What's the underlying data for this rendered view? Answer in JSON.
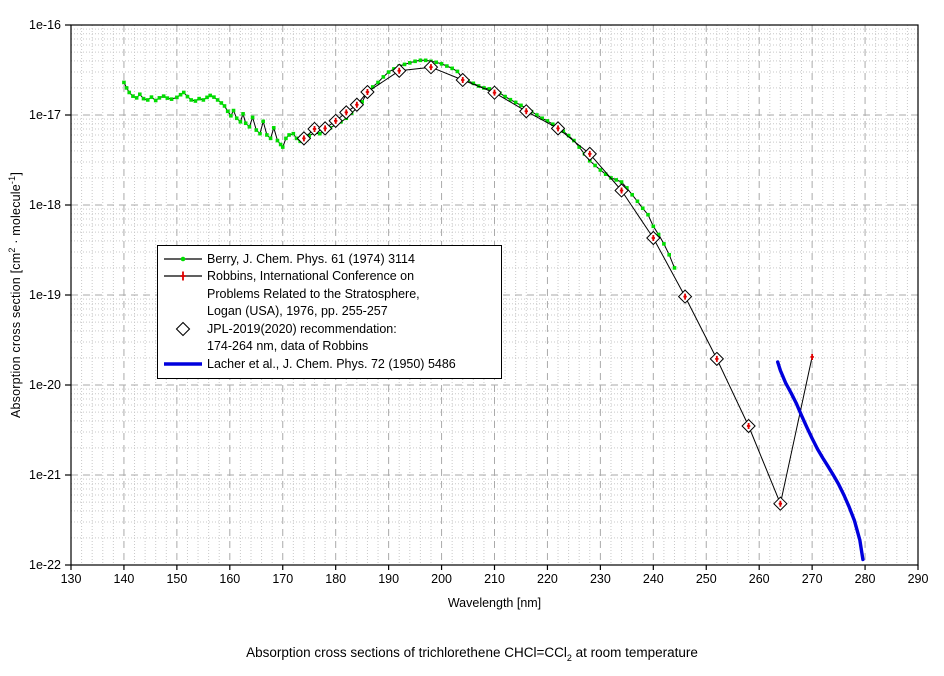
{
  "page": {
    "caption": {
      "pre": "Absorption cross sections of trichlorethene CHCl=CCl",
      "sub": "2",
      "post": " at room temperature"
    }
  },
  "chart_data": {
    "type": "line",
    "title": "Absorption cross sections of trichlorethene CHCl=CCl2 at room temperature",
    "xlabel": "Wavelength [nm]",
    "ylabel_parts": {
      "pre": "Absorption cross section [cm",
      "sup1": "2",
      "mid": " · molecule",
      "sup2": "-1",
      "post": "]"
    },
    "x_axis": {
      "min": 130,
      "max": 290,
      "major_tick_step": 10,
      "minor_grid_step": 2,
      "tick_labels": [
        "130",
        "140",
        "150",
        "160",
        "170",
        "180",
        "190",
        "200",
        "210",
        "220",
        "230",
        "240",
        "250",
        "260",
        "270",
        "280",
        "290"
      ]
    },
    "y_axis": {
      "scale": "log",
      "min": 1e-22,
      "max": 1e-16,
      "tick_labels": [
        "1e-16",
        "1e-17",
        "1e-18",
        "1e-19",
        "1e-20",
        "1e-21",
        "1e-22"
      ]
    },
    "grid": {
      "shown": true,
      "minor_color": "#c9c9c9",
      "major_color": "#aaaaaa"
    },
    "legend_position": "inside upper-left",
    "legend": {
      "entries": [
        {
          "series": "berry",
          "lines": [
            "Berry, J. Chem. Phys. 61 (1974) 3114"
          ]
        },
        {
          "series": "robbins",
          "lines": [
            "Robbins,  International Conference on",
            "Problems Related to the Stratosphere,",
            "Logan (USA), 1976, pp. 255-257"
          ]
        },
        {
          "series": "jpl",
          "lines": [
            "JPL-2019(2020) recommendation:",
            "174-264 nm, data of Robbins"
          ]
        },
        {
          "series": "lacher",
          "lines": [
            "Lacher et al., J. Chem. Phys. 72 (1950) 5486"
          ]
        }
      ]
    },
    "series": [
      {
        "name": "berry",
        "label": "Berry, J. Chem. Phys. 61 (1974) 3114",
        "line_color": "#000000",
        "line_width": 1,
        "marker": "square",
        "marker_color": "#00dd00",
        "marker_size": 3.6,
        "points": [
          [
            140,
            2.3e-17
          ],
          [
            140.5,
            2e-17
          ],
          [
            141,
            1.78e-17
          ],
          [
            141.7,
            1.62e-17
          ],
          [
            142.4,
            1.55e-17
          ],
          [
            143,
            1.7e-17
          ],
          [
            143.7,
            1.52e-17
          ],
          [
            144.5,
            1.47e-17
          ],
          [
            145.2,
            1.58e-17
          ],
          [
            146,
            1.45e-17
          ],
          [
            146.7,
            1.55e-17
          ],
          [
            147.5,
            1.62e-17
          ],
          [
            148.2,
            1.54e-17
          ],
          [
            149,
            1.5e-17
          ],
          [
            150,
            1.57e-17
          ],
          [
            150.7,
            1.68e-17
          ],
          [
            151.3,
            1.78e-17
          ],
          [
            152,
            1.6e-17
          ],
          [
            152.7,
            1.47e-17
          ],
          [
            153.5,
            1.43e-17
          ],
          [
            154.2,
            1.52e-17
          ],
          [
            155,
            1.47e-17
          ],
          [
            155.7,
            1.57e-17
          ],
          [
            156.3,
            1.65e-17
          ],
          [
            157,
            1.58e-17
          ],
          [
            157.7,
            1.47e-17
          ],
          [
            158.4,
            1.36e-17
          ],
          [
            159,
            1.26e-17
          ],
          [
            159.6,
            1.1e-17
          ],
          [
            160.2,
            9.8e-18
          ],
          [
            160.7,
            1.12e-17
          ],
          [
            161.3,
            9.2e-18
          ],
          [
            162,
            8.4e-18
          ],
          [
            162.5,
            1.03e-17
          ],
          [
            163,
            8.1e-18
          ],
          [
            163.7,
            7.4e-18
          ],
          [
            164.3,
            9.4e-18
          ],
          [
            165,
            6.8e-18
          ],
          [
            165.7,
            6.2e-18
          ],
          [
            166.3,
            8.5e-18
          ],
          [
            167,
            6e-18
          ],
          [
            167.7,
            5.5e-18
          ],
          [
            168.3,
            7.2e-18
          ],
          [
            169,
            5.2e-18
          ],
          [
            169.6,
            4.7e-18
          ],
          [
            170,
            4.4e-18
          ],
          [
            170.6,
            5.5e-18
          ],
          [
            171.2,
            6e-18
          ],
          [
            172,
            6.2e-18
          ],
          [
            172.6,
            5.5e-18
          ],
          [
            173.3,
            5.1e-18
          ],
          [
            174,
            5.4e-18
          ],
          [
            175,
            5.9e-18
          ],
          [
            176,
            6.3e-18
          ],
          [
            177,
            6.2e-18
          ],
          [
            178,
            6.6e-18
          ],
          [
            179,
            7.2e-18
          ],
          [
            180,
            7.8e-18
          ],
          [
            181,
            8.4e-18
          ],
          [
            182,
            9.2e-18
          ],
          [
            183,
            1.05e-17
          ],
          [
            184,
            1.2e-17
          ],
          [
            185,
            1.4e-17
          ],
          [
            186,
            1.8e-17
          ],
          [
            187,
            2.05e-17
          ],
          [
            188,
            2.3e-17
          ],
          [
            189,
            2.65e-17
          ],
          [
            190,
            3e-17
          ],
          [
            191,
            3.25e-17
          ],
          [
            192,
            3.5e-17
          ],
          [
            193,
            3.65e-17
          ],
          [
            194,
            3.8e-17
          ],
          [
            195,
            3.95e-17
          ],
          [
            196,
            4.05e-17
          ],
          [
            197,
            4.05e-17
          ],
          [
            198,
            3.95e-17
          ],
          [
            199,
            3.85e-17
          ],
          [
            200,
            3.7e-17
          ],
          [
            201,
            3.5e-17
          ],
          [
            202,
            3.3e-17
          ],
          [
            203,
            3.05e-17
          ],
          [
            204,
            2.55e-17
          ],
          [
            205,
            2.4e-17
          ],
          [
            206,
            2.25e-17
          ],
          [
            207,
            2.1e-17
          ],
          [
            208,
            2e-17
          ],
          [
            209,
            1.95e-17
          ],
          [
            210,
            1.9e-17
          ],
          [
            211,
            1.75e-17
          ],
          [
            212,
            1.6e-17
          ],
          [
            213,
            1.48e-17
          ],
          [
            214,
            1.38e-17
          ],
          [
            215,
            1.28e-17
          ],
          [
            216,
            1.19e-17
          ],
          [
            217,
            1.09e-17
          ],
          [
            218,
            1e-17
          ],
          [
            219,
            9.2e-18
          ],
          [
            220,
            8.6e-18
          ],
          [
            221,
            7.9e-18
          ],
          [
            222,
            7.3e-18
          ],
          [
            223,
            6.6e-18
          ],
          [
            224,
            5.9e-18
          ],
          [
            225,
            5.2e-18
          ],
          [
            226,
            4.4e-18
          ],
          [
            227,
            3.7e-18
          ],
          [
            228,
            3.1e-18
          ],
          [
            229,
            2.75e-18
          ],
          [
            230,
            2.45e-18
          ],
          [
            231,
            2.2e-18
          ],
          [
            232,
            2e-18
          ],
          [
            233,
            1.9e-18
          ],
          [
            234,
            1.8e-18
          ],
          [
            235,
            1.55e-18
          ],
          [
            236,
            1.3e-18
          ],
          [
            237,
            1.1e-18
          ],
          [
            238,
            9.2e-19
          ],
          [
            239,
            7.8e-19
          ],
          [
            240,
            5.8e-19
          ],
          [
            241,
            4.7e-19
          ],
          [
            242,
            3.7e-19
          ],
          [
            243,
            2.8e-19
          ],
          [
            244,
            2e-19
          ]
        ]
      },
      {
        "name": "robbins",
        "label": "Robbins, International Conference on Problems Related to the Stratosphere, Logan (USA), 1976, pp. 255-257",
        "line_color": "#000000",
        "line_width": 1,
        "marker": "plus",
        "marker_color": "#e00000",
        "marker_size": 5,
        "points": [
          [
            174,
            5.5e-18
          ],
          [
            176,
            7e-18
          ],
          [
            178,
            7.1e-18
          ],
          [
            180,
            8.6e-18
          ],
          [
            182,
            1.07e-17
          ],
          [
            184,
            1.3e-17
          ],
          [
            186,
            1.8e-17
          ],
          [
            192,
            3.1e-17
          ],
          [
            198,
            3.4e-17
          ],
          [
            204,
            2.45e-17
          ],
          [
            210,
            1.77e-17
          ],
          [
            216,
            1.1e-17
          ],
          [
            222,
            7.1e-18
          ],
          [
            228,
            3.7e-18
          ],
          [
            234,
            1.45e-18
          ],
          [
            240,
            4.3e-19
          ],
          [
            246,
            9.6e-20
          ],
          [
            252,
            1.95e-20
          ],
          [
            258,
            3.5e-21
          ],
          [
            264,
            4.8e-22
          ],
          [
            270,
            2.05e-20
          ]
        ]
      },
      {
        "name": "jpl",
        "label": "JPL-2019(2020) recommendation: 174-264 nm, data of Robbins",
        "line_color": "none",
        "line_width": 0,
        "marker": "open-diamond",
        "marker_color": "#000000",
        "marker_size": 13,
        "points": [
          [
            174,
            5.5e-18
          ],
          [
            176,
            7e-18
          ],
          [
            178,
            7.1e-18
          ],
          [
            180,
            8.6e-18
          ],
          [
            182,
            1.07e-17
          ],
          [
            184,
            1.3e-17
          ],
          [
            186,
            1.8e-17
          ],
          [
            192,
            3.1e-17
          ],
          [
            198,
            3.4e-17
          ],
          [
            204,
            2.45e-17
          ],
          [
            210,
            1.77e-17
          ],
          [
            216,
            1.1e-17
          ],
          [
            222,
            7.1e-18
          ],
          [
            228,
            3.7e-18
          ],
          [
            234,
            1.45e-18
          ],
          [
            240,
            4.3e-19
          ],
          [
            246,
            9.6e-20
          ],
          [
            252,
            1.95e-20
          ],
          [
            258,
            3.5e-21
          ],
          [
            264,
            4.8e-22
          ]
        ]
      },
      {
        "name": "lacher",
        "label": "Lacher et al., J. Chem. Phys. 72 (1950) 5486",
        "line_color": "#0000dd",
        "line_width": 3.4,
        "marker": "none",
        "marker_color": "#0000dd",
        "marker_size": 0,
        "points": [
          [
            263.5,
            1.8e-20
          ],
          [
            264,
            1.45e-20
          ],
          [
            265,
            1.05e-20
          ],
          [
            266,
            8.2e-21
          ],
          [
            267,
            6.3e-21
          ],
          [
            268,
            4.6e-21
          ],
          [
            269,
            3.4e-21
          ],
          [
            270,
            2.55e-21
          ],
          [
            271,
            1.95e-21
          ],
          [
            272,
            1.55e-21
          ],
          [
            273,
            1.25e-21
          ],
          [
            274,
            1e-21
          ],
          [
            275,
            7.9e-22
          ],
          [
            276,
            6e-22
          ],
          [
            277,
            4.4e-22
          ],
          [
            278,
            3.1e-22
          ],
          [
            279,
            1.9e-22
          ],
          [
            279.6,
            1.15e-22
          ]
        ]
      }
    ]
  }
}
